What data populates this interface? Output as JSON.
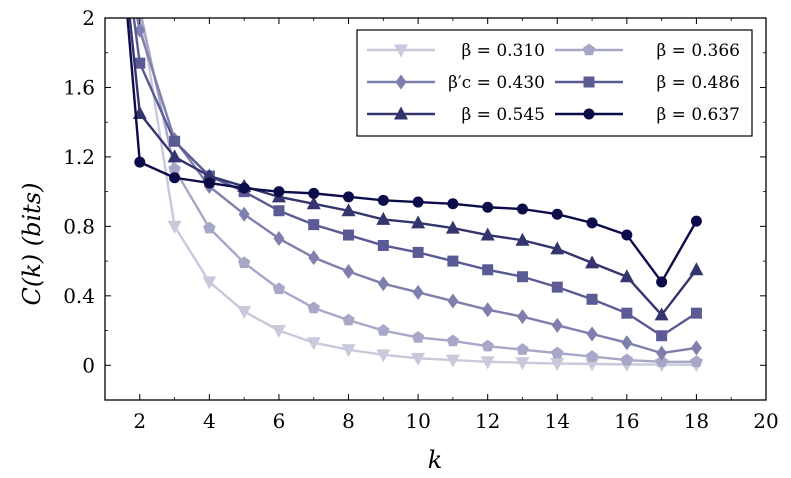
{
  "chart_data": {
    "type": "line",
    "title": "",
    "xlabel": "k",
    "ylabel": "C(k) (bits)",
    "xlim": [
      1,
      20
    ],
    "ylim": [
      -0.2,
      2.0
    ],
    "xticks": [
      2,
      4,
      6,
      8,
      10,
      12,
      14,
      16,
      18,
      20
    ],
    "yticks": [
      0,
      0.4,
      0.8,
      1.2,
      1.6,
      2
    ],
    "xtick_labels": [
      "2",
      "4",
      "6",
      "8",
      "10",
      "12",
      "14",
      "16",
      "18",
      "20"
    ],
    "ytick_labels": [
      "0",
      "0.4",
      "0.8",
      "1.2",
      "1.6",
      "2"
    ],
    "grid": false,
    "legend_position": "top-right",
    "x": [
      2,
      3,
      4,
      5,
      6,
      7,
      8,
      9,
      10,
      11,
      12,
      13,
      14,
      15,
      16,
      17,
      18
    ],
    "series": [
      {
        "name": "β = 0.310",
        "color": "#c9c9dc",
        "marker": "triangle-down",
        "values": [
          2.05,
          0.8,
          0.48,
          0.31,
          0.2,
          0.13,
          0.09,
          0.06,
          0.04,
          0.03,
          0.02,
          0.015,
          0.01,
          0.008,
          0.005,
          0.004,
          0.003
        ],
        "lead_in": [
          1.3,
          3.0
        ]
      },
      {
        "name": "β = 0.366",
        "color": "#a7a7c7",
        "marker": "pentagon",
        "values": [
          2.05,
          1.13,
          0.79,
          0.59,
          0.44,
          0.33,
          0.26,
          0.2,
          0.16,
          0.14,
          0.11,
          0.09,
          0.07,
          0.05,
          0.03,
          0.02,
          0.02
        ],
        "lead_in": [
          1.4,
          2.5
        ]
      },
      {
        "name": "β′c = 0.430",
        "color": "#7f7fad",
        "marker": "diamond",
        "values": [
          1.93,
          1.3,
          1.03,
          0.87,
          0.73,
          0.62,
          0.54,
          0.47,
          0.42,
          0.37,
          0.32,
          0.28,
          0.23,
          0.18,
          0.13,
          0.07,
          0.1
        ],
        "lead_in": [
          1.5,
          2.4
        ]
      },
      {
        "name": "β = 0.486",
        "color": "#5a5a94",
        "marker": "square",
        "values": [
          1.74,
          1.29,
          1.09,
          1.0,
          0.89,
          0.81,
          0.75,
          0.69,
          0.65,
          0.6,
          0.55,
          0.51,
          0.45,
          0.38,
          0.3,
          0.17,
          0.3
        ],
        "lead_in": [
          1.5,
          2.5
        ]
      },
      {
        "name": "β = 0.545",
        "color": "#34346f",
        "marker": "triangle-up",
        "values": [
          1.45,
          1.2,
          1.09,
          1.03,
          0.97,
          0.93,
          0.89,
          0.84,
          0.82,
          0.79,
          0.75,
          0.72,
          0.67,
          0.59,
          0.51,
          0.29,
          0.55
        ],
        "lead_in": [
          1.4,
          2.6
        ]
      },
      {
        "name": "β = 0.637",
        "color": "#0c0c4a",
        "marker": "circle",
        "values": [
          1.17,
          1.08,
          1.05,
          1.02,
          1.0,
          0.99,
          0.97,
          0.95,
          0.94,
          0.93,
          0.91,
          0.9,
          0.87,
          0.82,
          0.75,
          0.48,
          0.83
        ],
        "lead_in": [
          1.35,
          2.7
        ]
      }
    ]
  }
}
